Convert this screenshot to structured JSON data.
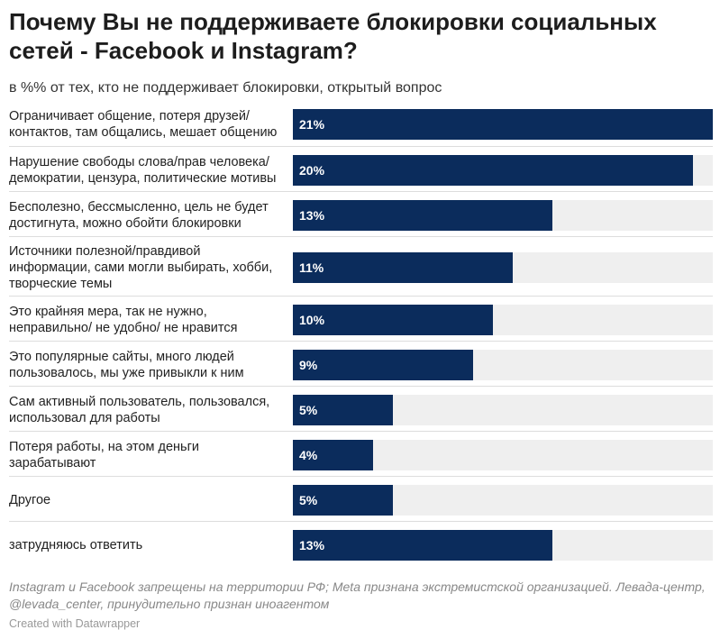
{
  "header": {
    "title": "Почему Вы не поддерживаете блокировки социальных сетей - Facebook и Instagram?",
    "subtitle": "в %% от тех, кто не поддерживает блокировки, открытый вопрос"
  },
  "chart_data": {
    "type": "bar",
    "orientation": "horizontal",
    "title": "Почему Вы не поддерживаете блокировки социальных сетей - Facebook и Instagram?",
    "subtitle": "в %% от тех, кто не поддерживает блокировки, открытый вопрос",
    "categories": [
      "Ограничивает общение, потеря друзей/\nконтактов, там общались, мешает общению",
      "Нарушение свободы слова/прав человека/\nдемократии, цензура, политические мотивы",
      "Бесполезно, бессмысленно, цель не будет\nдостигнута, можно обойти блокировки",
      "Источники полезной/правдивой\nинформации, сами могли выбирать, хобби,\nтворческие темы",
      "Это крайняя мера, так не нужно,\nнеправильно/ не удобно/ не нравится",
      "Это популярные сайты, много людей\nпользовалось, мы уже привыкли к ним",
      "Сам активный пользователь, пользовался,\nиспользовал для работы",
      "Потеря работы, на этом деньги\nзарабатывают",
      "Другое",
      "затрудняюсь ответить"
    ],
    "values": [
      21,
      20,
      13,
      11,
      10,
      9,
      5,
      4,
      5,
      13
    ],
    "value_labels": [
      "21%",
      "20%",
      "13%",
      "11%",
      "10%",
      "9%",
      "5%",
      "4%",
      "5%",
      "13%"
    ],
    "xlim": [
      0,
      21
    ],
    "grid": false,
    "colors": {
      "bar": "#0b2c5c",
      "track": "#efefef"
    }
  },
  "footer": {
    "notes": "Instagram и Facebook запрещены на территории РФ; Meta признана экстремистской организацией. Левада-центр, @levada_center, принудительно признан иноагентом",
    "credit": "Created with Datawrapper"
  }
}
